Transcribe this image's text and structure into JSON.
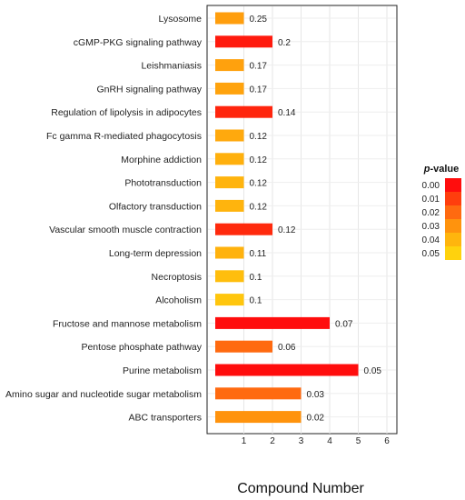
{
  "chart_data": {
    "type": "bar",
    "orientation": "horizontal",
    "categories": [
      "Lysosome",
      "cGMP-PKG signaling pathway",
      "Leishmaniasis",
      "GnRH signaling pathway",
      "Regulation of lipolysis in adipocytes",
      "Fc gamma R-mediated phagocytosis",
      "Morphine addiction",
      "Phototransduction",
      "Olfactory transduction",
      "Vascular smooth muscle contraction",
      "Long-term depression",
      "Necroptosis",
      "Alcoholism",
      "Fructose and mannose metabolism",
      "Pentose phosphate pathway",
      "Purine metabolism",
      "Amino sugar and nucleotide sugar metabolism",
      "ABC transporters"
    ],
    "values": [
      1,
      2,
      1,
      1,
      2,
      1,
      1,
      1,
      1,
      2,
      1,
      1,
      1,
      4,
      2,
      5,
      3,
      3
    ],
    "bar_labels": [
      "0.25",
      "0.2",
      "0.17",
      "0.17",
      "0.14",
      "0.12",
      "0.12",
      "0.12",
      "0.12",
      "0.12",
      "0.11",
      "0.1",
      "0.1",
      "0.07",
      "0.06",
      "0.05",
      "0.03",
      "0.02"
    ],
    "bar_colors": [
      "#FF9E0D",
      "#FF1A0D",
      "#FFA10D",
      "#FFA30D",
      "#FF250D",
      "#FFA90D",
      "#FFB00D",
      "#FFB40D",
      "#FFB40D",
      "#FF2A0D",
      "#FFB20D",
      "#FFBE0D",
      "#FFC60D",
      "#FF0D0D",
      "#FF6A10",
      "#FF0D0D",
      "#FF6A10",
      "#FF930D"
    ],
    "xlabel": "Compound Number",
    "xlim": [
      0,
      6.2
    ],
    "xticks": [
      1,
      2,
      3,
      4,
      5,
      6
    ],
    "grid": true,
    "legend": {
      "title_italic": "p",
      "title_rest": "-value",
      "position": "right",
      "items": [
        {
          "label": "0.00",
          "color": "#FF0D0D"
        },
        {
          "label": "0.01",
          "color": "#FF3E0D"
        },
        {
          "label": "0.02",
          "color": "#FF6A10"
        },
        {
          "label": "0.03",
          "color": "#FF930D"
        },
        {
          "label": "0.04",
          "color": "#FFB50D"
        },
        {
          "label": "0.05",
          "color": "#FFD20D"
        }
      ]
    }
  }
}
